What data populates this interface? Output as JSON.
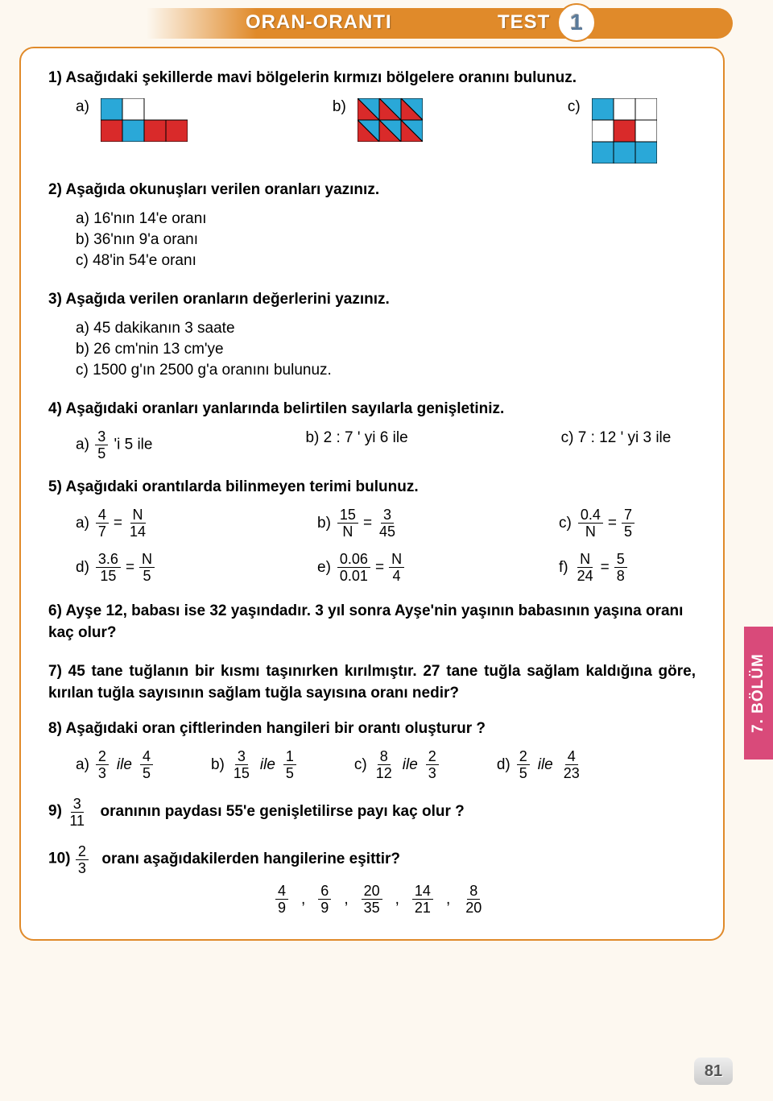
{
  "header": {
    "title": "ORAN-ORANTI",
    "test_label": "TEST",
    "test_number": "1"
  },
  "side_tab": "7. BÖLÜM",
  "page_number": "81",
  "q1": {
    "title": "1) Asağıdaki şekillerde mavi bölgelerin kırmızı bölgelere oranını bulunuz.",
    "a": "a)",
    "b": "b)",
    "c": "c)",
    "shape_a": {
      "grid": [
        2,
        4
      ],
      "cells": [
        {
          "r": 0,
          "c": 0,
          "fill": "#2aa8d8"
        },
        {
          "r": 0,
          "c": 1,
          "fill": "#fff"
        },
        {
          "r": 1,
          "c": 0,
          "fill": "#d92a2a"
        },
        {
          "r": 1,
          "c": 1,
          "fill": "#2aa8d8"
        },
        {
          "r": 1,
          "c": 2,
          "fill": "#d92a2a"
        },
        {
          "r": 1,
          "c": 3,
          "fill": "#d92a2a"
        }
      ]
    },
    "shape_b": {
      "grid": [
        2,
        3
      ],
      "triangles": true,
      "tri_colors": {
        "upper": "#2aa8d8",
        "lower": "#d92a2a"
      }
    },
    "shape_c": {
      "grid": [
        3,
        3
      ],
      "cells": [
        {
          "r": 0,
          "c": 0,
          "fill": "#2aa8d8"
        },
        {
          "r": 0,
          "c": 1,
          "fill": "#fff"
        },
        {
          "r": 0,
          "c": 2,
          "fill": "#fff"
        },
        {
          "r": 1,
          "c": 0,
          "fill": "#fff"
        },
        {
          "r": 1,
          "c": 1,
          "fill": "#d92a2a"
        },
        {
          "r": 1,
          "c": 2,
          "fill": "#fff"
        },
        {
          "r": 2,
          "c": 0,
          "fill": "#2aa8d8"
        },
        {
          "r": 2,
          "c": 1,
          "fill": "#2aa8d8"
        },
        {
          "r": 2,
          "c": 2,
          "fill": "#2aa8d8"
        }
      ]
    }
  },
  "q2": {
    "title": "2) Aşağıda okunuşları verilen oranları yazınız.",
    "a": "a) 16'nın 14'e oranı",
    "b": "b) 36'nın 9'a oranı",
    "c": "c) 48'in 54'e oranı"
  },
  "q3": {
    "title": "3) Aşağıda verilen oranların değerlerini yazınız.",
    "a": "a) 45 dakikanın 3 saate",
    "b": "b) 26 cm'nin 13 cm'ye",
    "c": "c) 1500 g'ın 2500 g'a oranını bulunuz."
  },
  "q4": {
    "title": "4) Aşağıdaki oranları yanlarında belirtilen sayılarla genişletiniz.",
    "a_pre": "a)",
    "a_frac": {
      "n": "3",
      "d": "5"
    },
    "a_post": "'i  5 ile",
    "b": "b) 2 : 7  ' yi 6 ile",
    "c": "c) 7 : 12 ' yi 3 ile"
  },
  "q5": {
    "title": "5) Aşağıdaki orantılarda bilinmeyen terimi bulunuz.",
    "items": [
      {
        "label": "a)",
        "f1": {
          "n": "4",
          "d": "7"
        },
        "f2": {
          "n": "N",
          "d": "14"
        }
      },
      {
        "label": "b)",
        "f1": {
          "n": "15",
          "d": "N"
        },
        "f2": {
          "n": "3",
          "d": "45"
        }
      },
      {
        "label": "c)",
        "f1": {
          "n": "0.4",
          "d": "N"
        },
        "f2": {
          "n": "7",
          "d": "5"
        }
      },
      {
        "label": "d)",
        "f1": {
          "n": "3.6",
          "d": "15"
        },
        "f2": {
          "n": "N",
          "d": "5"
        }
      },
      {
        "label": "e)",
        "f1": {
          "n": "0.06",
          "d": "0.01"
        },
        "f2": {
          "n": "N",
          "d": "4"
        }
      },
      {
        "label": "f)",
        "f1": {
          "n": "N",
          "d": "24"
        },
        "f2": {
          "n": "5",
          "d": "8"
        }
      }
    ]
  },
  "q6": "6) Ayşe  12,  babası ise 32 yaşındadır. 3 yıl sonra Ayşe'nin yaşının babasının yaşına oranı kaç olur?",
  "q7": "7) 45 tane tuğlanın bir kısmı taşınırken kırılmıştır. 27 tane tuğla sağlam kaldığına göre, kırılan tuğla sayısının sağlam tuğla sayısına oranı nedir?",
  "q8": {
    "title": "8) Aşağıdaki oran çiftlerinden hangileri bir orantı oluşturur ?",
    "items": [
      {
        "label": "a)",
        "f1": {
          "n": "2",
          "d": "3"
        },
        "f2": {
          "n": "4",
          "d": "5"
        }
      },
      {
        "label": "b)",
        "f1": {
          "n": "3",
          "d": "15"
        },
        "f2": {
          "n": "1",
          "d": "5"
        }
      },
      {
        "label": "c)",
        "f1": {
          "n": "8",
          "d": "12"
        },
        "f2": {
          "n": "2",
          "d": "3"
        }
      },
      {
        "label": "d)",
        "f1": {
          "n": "2",
          "d": "5"
        },
        "f2": {
          "n": "4",
          "d": "23"
        }
      }
    ],
    "ile": "ile"
  },
  "q9": {
    "pre": "9)",
    "frac": {
      "n": "3",
      "d": "11"
    },
    "post": "oranının paydası  55'e  genişletilirse payı kaç olur ?"
  },
  "q10": {
    "pre": "10)",
    "frac": {
      "n": "2",
      "d": "3"
    },
    "post": "oranı aşağıdakilerden hangilerine eşittir?",
    "fracs": [
      {
        "n": "4",
        "d": "9"
      },
      {
        "n": "6",
        "d": "9"
      },
      {
        "n": "20",
        "d": "35"
      },
      {
        "n": "14",
        "d": "21"
      },
      {
        "n": "8",
        "d": "20"
      }
    ]
  }
}
